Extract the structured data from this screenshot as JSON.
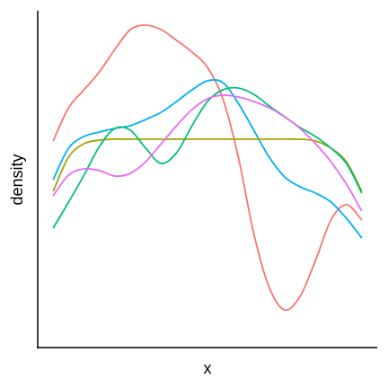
{
  "chart_data": {
    "type": "line",
    "x_label": "x",
    "y_label": "density",
    "x": [
      0,
      0.5,
      1,
      1.5,
      2,
      2.5,
      3,
      3.5,
      4,
      4.5,
      5,
      5.5,
      6,
      6.5,
      7,
      7.5,
      8,
      8.5,
      9,
      9.5,
      10
    ],
    "xlim": [
      -0.5,
      10.5
    ],
    "ylim": [
      0,
      375
    ],
    "series": [
      {
        "color": "#F8766D",
        "values": [
          230,
          267,
          287,
          307,
          332,
          354,
          359,
          354,
          342,
          329,
          312,
          277,
          212,
          127,
          67,
          42,
          57,
          97,
          142,
          159,
          142
        ]
      },
      {
        "color": "#00B0F6",
        "values": [
          187,
          222,
          235,
          240,
          244,
          247,
          254,
          262,
          274,
          287,
          297,
          295,
          272,
          242,
          212,
          190,
          179,
          172,
          162,
          144,
          122
        ]
      },
      {
        "color": "#A3A500",
        "values": [
          174,
          212,
          227,
          231,
          232,
          232,
          232,
          232,
          232,
          232,
          232,
          232,
          232,
          232,
          232,
          232,
          232,
          230,
          222,
          207,
          174
        ]
      },
      {
        "color": "#00BF7D",
        "values": [
          133,
          162,
          192,
          224,
          244,
          242,
          222,
          205,
          217,
          247,
          274,
          287,
          289,
          282,
          269,
          257,
          245,
          235,
          222,
          205,
          172
        ]
      },
      {
        "color": "#E76BF3",
        "values": [
          169,
          192,
          199,
          197,
          191,
          194,
          207,
          227,
          247,
          265,
          277,
          281,
          279,
          274,
          267,
          257,
          244,
          227,
          207,
          182,
          152
        ]
      }
    ]
  }
}
